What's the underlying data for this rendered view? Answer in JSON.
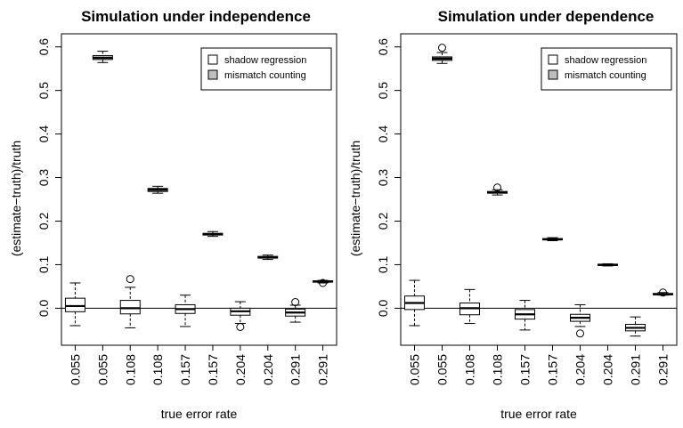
{
  "chart_data": [
    {
      "type": "box",
      "title": "Simulation under independence",
      "xlabel": "true error rate",
      "ylabel": "(estimate−truth)/truth",
      "ylim": [
        -0.085,
        0.63
      ],
      "yticks": [
        0.0,
        0.1,
        0.2,
        0.3,
        0.4,
        0.5,
        0.6
      ],
      "ytick_labels": [
        "0.0",
        "0.1",
        "0.2",
        "0.3",
        "0.4",
        "0.5",
        "0.6"
      ],
      "categories": [
        "0.055",
        "0.055",
        "0.108",
        "0.108",
        "0.157",
        "0.157",
        "0.204",
        "0.204",
        "0.291",
        "0.291"
      ],
      "reference_line": 0,
      "legend": {
        "position": "top-right",
        "entries": [
          {
            "label": "shadow regression",
            "fill": "#ffffff"
          },
          {
            "label": "mismatch counting",
            "fill": "#bebebe"
          }
        ]
      },
      "boxes": [
        {
          "category": "0.055",
          "method": "shadow regression",
          "whisker_low": -0.04,
          "q1": -0.008,
          "median": 0.005,
          "q3": 0.023,
          "whisker_high": 0.058,
          "outliers": []
        },
        {
          "category": "0.055",
          "method": "mismatch counting",
          "whisker_low": 0.564,
          "q1": 0.571,
          "median": 0.575,
          "q3": 0.58,
          "whisker_high": 0.59,
          "outliers": []
        },
        {
          "category": "0.108",
          "method": "shadow regression",
          "whisker_low": -0.045,
          "q1": -0.013,
          "median": 0.0,
          "q3": 0.018,
          "whisker_high": 0.048,
          "outliers": [
            0.067
          ]
        },
        {
          "category": "0.108",
          "method": "mismatch counting",
          "whisker_low": 0.264,
          "q1": 0.268,
          "median": 0.272,
          "q3": 0.275,
          "whisker_high": 0.28,
          "outliers": []
        },
        {
          "category": "0.157",
          "method": "shadow regression",
          "whisker_low": -0.042,
          "q1": -0.012,
          "median": -0.002,
          "q3": 0.008,
          "whisker_high": 0.03,
          "outliers": []
        },
        {
          "category": "0.157",
          "method": "mismatch counting",
          "whisker_low": 0.165,
          "q1": 0.168,
          "median": 0.17,
          "q3": 0.172,
          "whisker_high": 0.176,
          "outliers": []
        },
        {
          "category": "0.204",
          "method": "shadow regression",
          "whisker_low": -0.035,
          "q1": -0.016,
          "median": -0.007,
          "q3": 0.0,
          "whisker_high": 0.015,
          "outliers": [
            -0.043
          ]
        },
        {
          "category": "0.204",
          "method": "mismatch counting",
          "whisker_low": 0.112,
          "q1": 0.115,
          "median": 0.117,
          "q3": 0.119,
          "whisker_high": 0.122,
          "outliers": []
        },
        {
          "category": "0.291",
          "method": "shadow regression",
          "whisker_low": -0.032,
          "q1": -0.018,
          "median": -0.01,
          "q3": -0.002,
          "whisker_high": 0.007,
          "outliers": [
            0.014
          ]
        },
        {
          "category": "0.291",
          "method": "mismatch counting",
          "whisker_low": 0.058,
          "q1": 0.06,
          "median": 0.061,
          "q3": 0.063,
          "whisker_high": 0.064,
          "outliers": [
            0.058
          ]
        }
      ]
    },
    {
      "type": "box",
      "title": "Simulation under dependence",
      "xlabel": "true error rate",
      "ylabel": "(estimate−truth)/truth",
      "ylim": [
        -0.085,
        0.63
      ],
      "yticks": [
        0.0,
        0.1,
        0.2,
        0.3,
        0.4,
        0.5,
        0.6
      ],
      "ytick_labels": [
        "0.0",
        "0.1",
        "0.2",
        "0.3",
        "0.4",
        "0.5",
        "0.6"
      ],
      "categories": [
        "0.055",
        "0.055",
        "0.108",
        "0.108",
        "0.157",
        "0.157",
        "0.204",
        "0.204",
        "0.291",
        "0.291"
      ],
      "reference_line": 0,
      "legend": {
        "position": "top-right",
        "entries": [
          {
            "label": "shadow regression",
            "fill": "#ffffff"
          },
          {
            "label": "mismatch counting",
            "fill": "#bebebe"
          }
        ]
      },
      "boxes": [
        {
          "category": "0.055",
          "method": "shadow regression",
          "whisker_low": -0.04,
          "q1": -0.003,
          "median": 0.012,
          "q3": 0.028,
          "whisker_high": 0.064,
          "outliers": []
        },
        {
          "category": "0.055",
          "method": "mismatch counting",
          "whisker_low": 0.562,
          "q1": 0.569,
          "median": 0.573,
          "q3": 0.577,
          "whisker_high": 0.587,
          "outliers": [
            0.598
          ]
        },
        {
          "category": "0.108",
          "method": "shadow regression",
          "whisker_low": -0.035,
          "q1": -0.015,
          "median": 0.0,
          "q3": 0.012,
          "whisker_high": 0.043,
          "outliers": []
        },
        {
          "category": "0.108",
          "method": "mismatch counting",
          "whisker_low": 0.26,
          "q1": 0.264,
          "median": 0.266,
          "q3": 0.268,
          "whisker_high": 0.272,
          "outliers": [
            0.277
          ]
        },
        {
          "category": "0.157",
          "method": "shadow regression",
          "whisker_low": -0.05,
          "q1": -0.025,
          "median": -0.014,
          "q3": -0.003,
          "whisker_high": 0.018,
          "outliers": []
        },
        {
          "category": "0.157",
          "method": "mismatch counting",
          "whisker_low": 0.155,
          "q1": 0.157,
          "median": 0.158,
          "q3": 0.16,
          "whisker_high": 0.162,
          "outliers": []
        },
        {
          "category": "0.204",
          "method": "shadow regression",
          "whisker_low": -0.042,
          "q1": -0.03,
          "median": -0.022,
          "q3": -0.014,
          "whisker_high": 0.008,
          "outliers": [
            -0.058
          ]
        },
        {
          "category": "0.204",
          "method": "mismatch counting",
          "whisker_low": 0.097,
          "q1": 0.098,
          "median": 0.1,
          "q3": 0.101,
          "whisker_high": 0.102,
          "outliers": []
        },
        {
          "category": "0.291",
          "method": "shadow regression",
          "whisker_low": -0.064,
          "q1": -0.052,
          "median": -0.045,
          "q3": -0.037,
          "whisker_high": -0.02,
          "outliers": []
        },
        {
          "category": "0.291",
          "method": "mismatch counting",
          "whisker_low": 0.03,
          "q1": 0.031,
          "median": 0.032,
          "q3": 0.034,
          "whisker_high": 0.036,
          "outliers": [
            0.036
          ]
        }
      ]
    }
  ]
}
